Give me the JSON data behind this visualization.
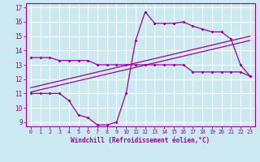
{
  "background_color": "#cce8f0",
  "grid_color": "#ffffff",
  "line_color": "#990099",
  "xlabel": "Windchill (Refroidissement éolien,°C)",
  "xlim_min": -0.5,
  "xlim_max": 23.5,
  "ylim_min": 8.7,
  "ylim_max": 17.3,
  "yticks": [
    9,
    10,
    11,
    12,
    13,
    14,
    15,
    16,
    17
  ],
  "xticks": [
    0,
    1,
    2,
    3,
    4,
    5,
    6,
    7,
    8,
    9,
    10,
    11,
    12,
    13,
    14,
    15,
    16,
    17,
    18,
    19,
    20,
    21,
    22,
    23
  ],
  "curve1_x": [
    0,
    1,
    2,
    3,
    4,
    5,
    6,
    7,
    8,
    9,
    10,
    11,
    12,
    13,
    14,
    15,
    16,
    17,
    18,
    19,
    20,
    21,
    22,
    23
  ],
  "curve1_y": [
    13.5,
    13.5,
    13.5,
    13.3,
    13.3,
    13.3,
    13.3,
    13.0,
    13.0,
    13.0,
    13.0,
    13.0,
    13.0,
    13.0,
    13.0,
    13.0,
    13.0,
    12.5,
    12.5,
    12.5,
    12.5,
    12.5,
    12.5,
    12.2
  ],
  "curve2_x": [
    0,
    1,
    2,
    3,
    4,
    5,
    6,
    7,
    8,
    9,
    10,
    11,
    12,
    13,
    14,
    15,
    16,
    17,
    18,
    19,
    20,
    21,
    22,
    23
  ],
  "curve2_y": [
    11.0,
    11.0,
    11.0,
    11.0,
    10.5,
    9.5,
    9.3,
    8.8,
    8.8,
    9.0,
    11.0,
    14.7,
    16.7,
    15.9,
    15.9,
    15.9,
    16.0,
    15.7,
    15.5,
    15.3,
    15.3,
    14.8,
    13.0,
    12.2
  ],
  "line1_x": [
    0,
    23
  ],
  "line1_y": [
    11.1,
    14.7
  ],
  "line2_x": [
    0,
    23
  ],
  "line2_y": [
    11.4,
    15.0
  ]
}
